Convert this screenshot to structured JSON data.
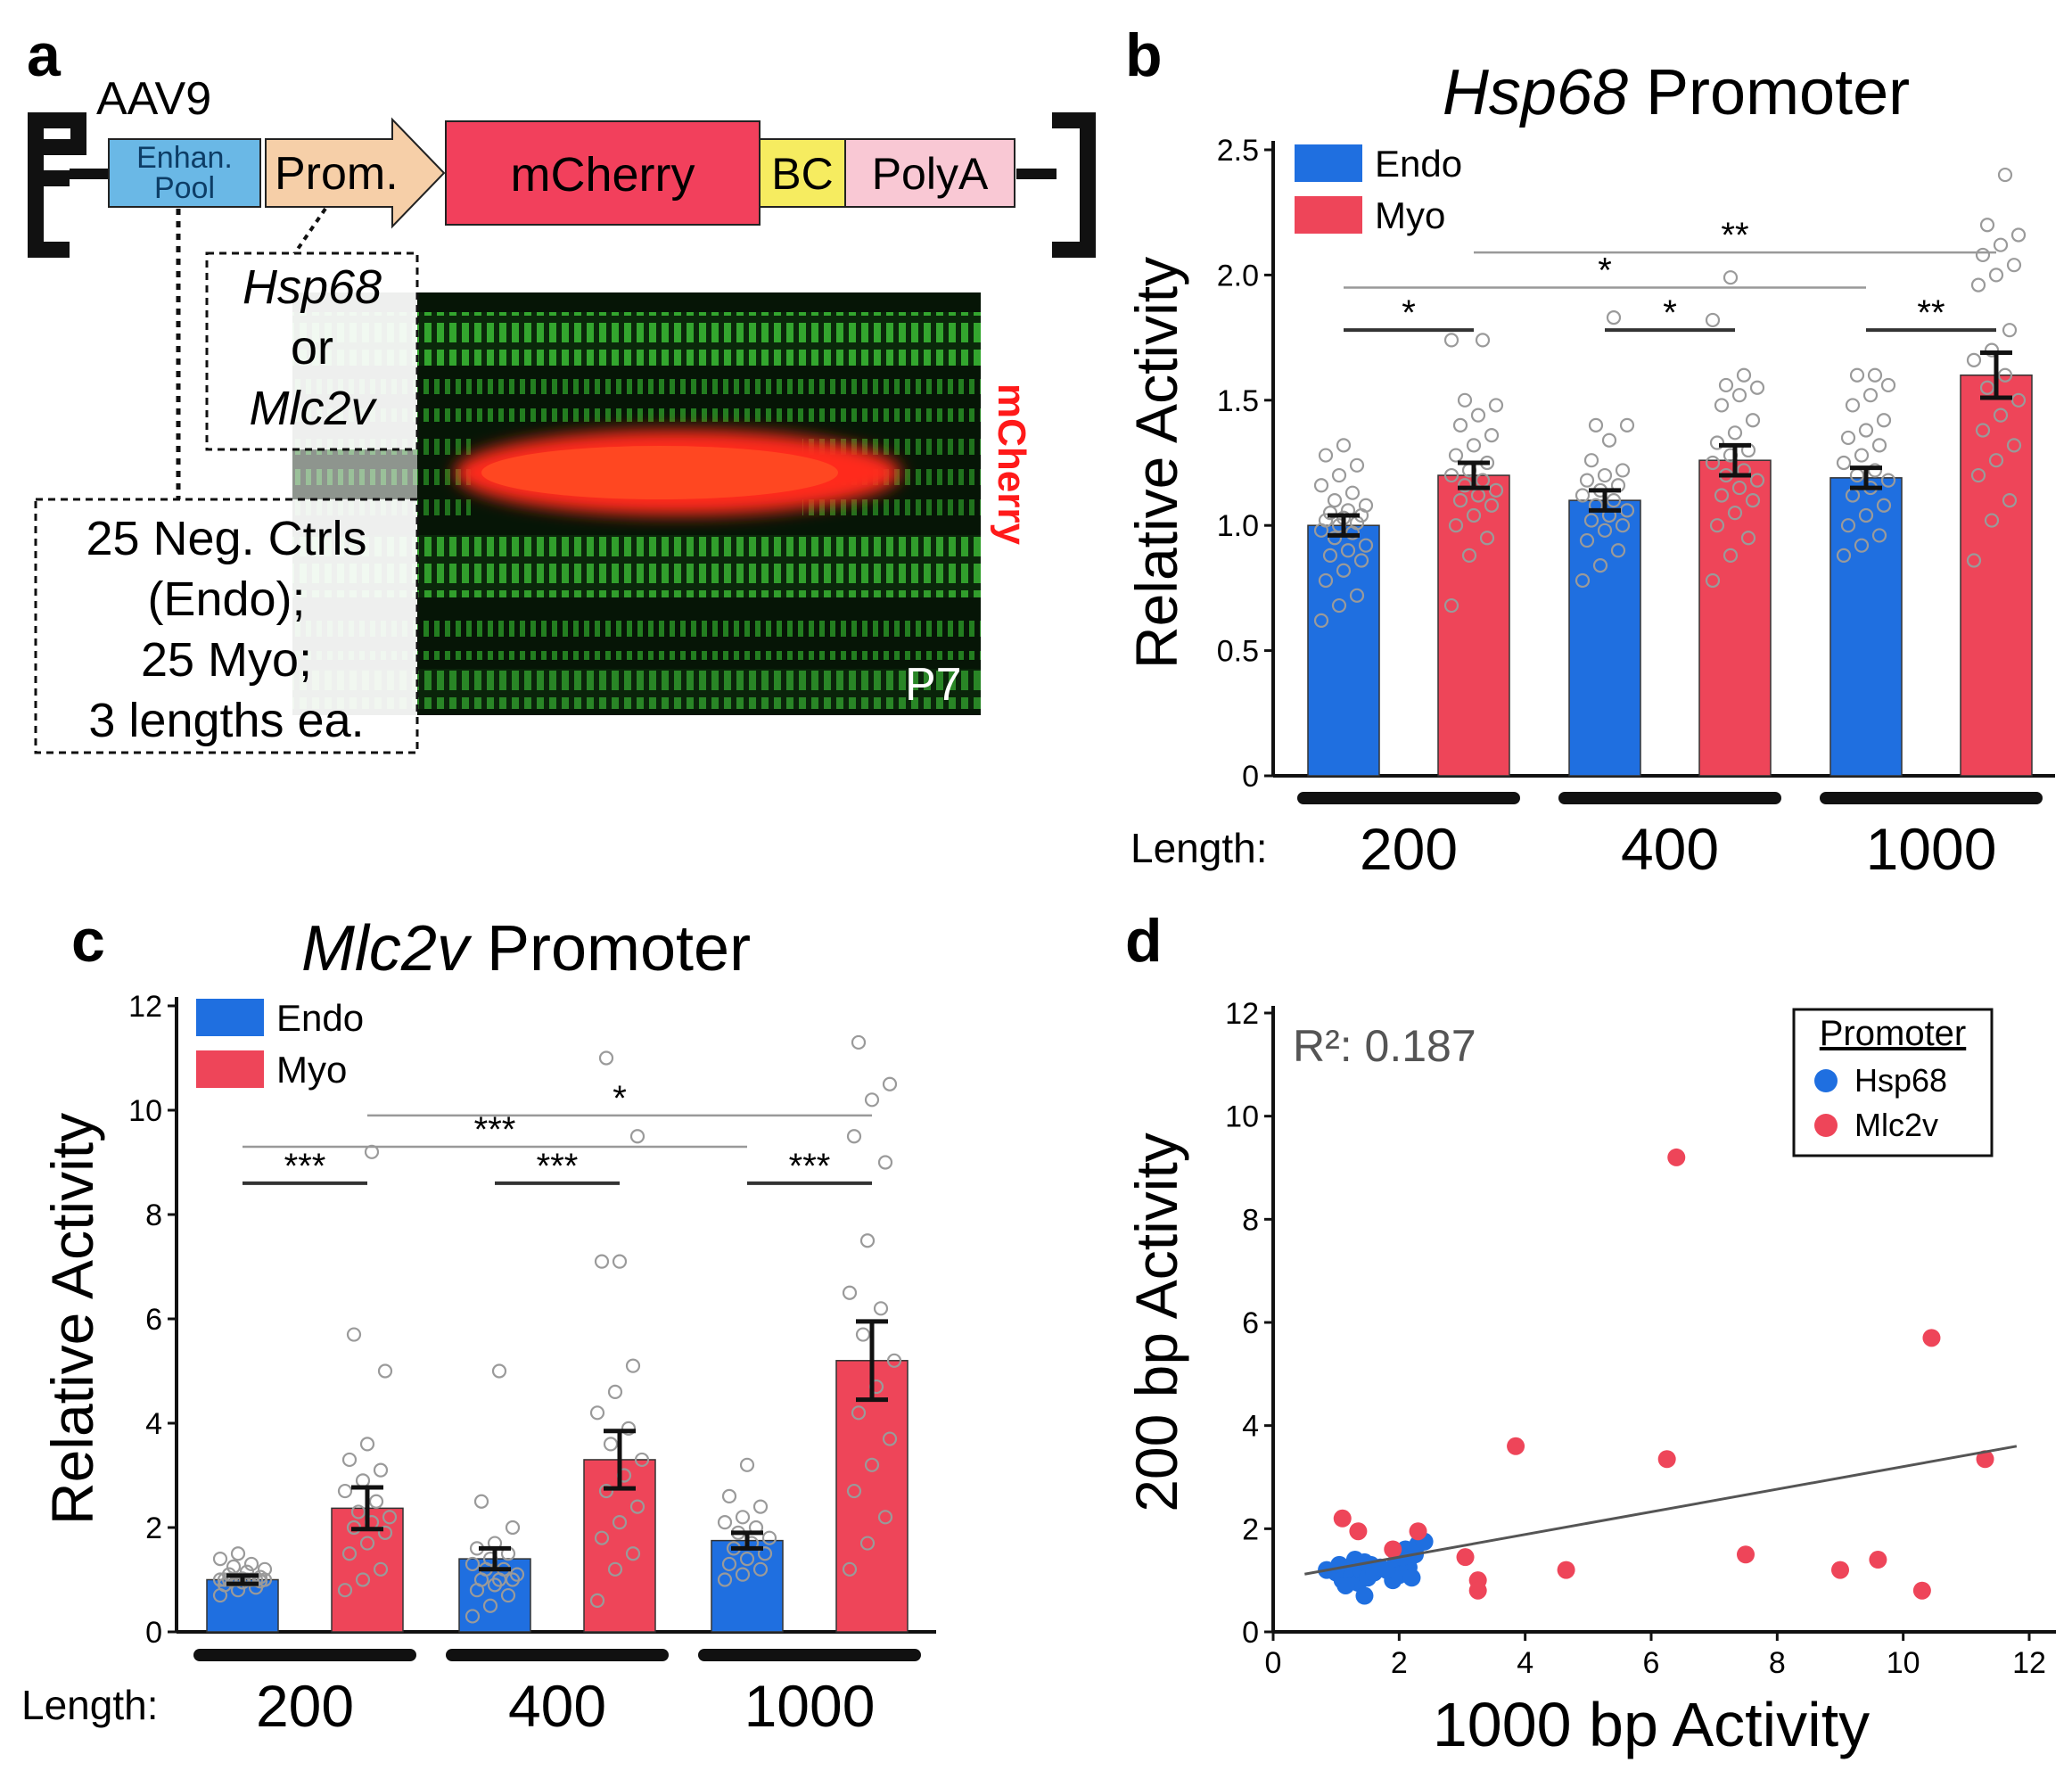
{
  "colors": {
    "endo": "#1f6fe0",
    "myo": "#ee4559",
    "enhancer": "#6ab8e6",
    "promoter": "#f6cfa8",
    "mcherry": "#f2405c",
    "barcode": "#f6ec60",
    "polya": "#f9c8d4",
    "micrograph_green": "#3fcf3a",
    "micrograph_red": "#ff2a1a",
    "point_open": "#9a9a9a",
    "sig_line": "#999999"
  },
  "panel_a": {
    "letter": "a",
    "vector_name": "AAV9",
    "enhancer_label_1": "Enhan.",
    "enhancer_label_2": "Pool",
    "promoter_label": "Prom.",
    "reporter_label": "mCherry",
    "barcode_label": "BC",
    "polya_label": "PolyA",
    "promoter_box_1": "Hsp68",
    "promoter_box_2": "or",
    "promoter_box_3": "Mlc2v",
    "library_line_1": "25 Neg. Ctrls",
    "library_line_2": "(Endo);",
    "library_line_3": "25 Myo;",
    "library_line_4": "3 lengths ea.",
    "micrograph_stage": "P7",
    "micrograph_channel": "mCherry"
  },
  "chart_data": [
    {
      "panel": "b",
      "type": "bar",
      "title_italic": "Hsp68",
      "title_rest": " Promoter",
      "ylabel": "Relative Activity",
      "xlabel": "Length:",
      "ylim": [
        0,
        2.5
      ],
      "yticks": [
        "0",
        "0.5",
        "1.0",
        "1.5",
        "2.0",
        "2.5"
      ],
      "ytick_values": [
        0,
        0.5,
        1.0,
        1.5,
        2.0,
        2.5
      ],
      "categories": [
        "200",
        "400",
        "1000"
      ],
      "series": [
        {
          "name": "Endo",
          "color_key": "endo",
          "values": [
            1.0,
            1.1,
            1.19
          ],
          "errors": [
            0.04,
            0.04,
            0.04
          ],
          "points": [
            [
              0.62,
              0.68,
              0.72,
              0.78,
              0.82,
              0.86,
              0.88,
              0.9,
              0.92,
              0.95,
              0.97,
              0.98,
              1.0,
              1.01,
              1.02,
              1.03,
              1.04,
              1.05,
              1.06,
              1.08,
              1.1,
              1.13,
              1.16,
              1.2,
              1.24,
              1.28,
              1.32
            ],
            [
              0.78,
              0.84,
              0.9,
              0.94,
              0.98,
              1.0,
              1.02,
              1.04,
              1.06,
              1.08,
              1.1,
              1.12,
              1.14,
              1.16,
              1.18,
              1.2,
              1.22,
              1.26,
              1.34,
              1.4,
              1.4,
              1.83
            ],
            [
              0.88,
              0.92,
              0.96,
              1.0,
              1.04,
              1.08,
              1.12,
              1.15,
              1.18,
              1.2,
              1.22,
              1.25,
              1.28,
              1.32,
              1.35,
              1.38,
              1.42,
              1.48,
              1.52,
              1.56,
              1.6,
              1.6
            ]
          ]
        },
        {
          "name": "Myo",
          "color_key": "myo",
          "values": [
            1.2,
            1.26,
            1.6
          ],
          "errors": [
            0.05,
            0.06,
            0.09
          ],
          "points": [
            [
              0.68,
              0.88,
              0.95,
              1.0,
              1.04,
              1.08,
              1.1,
              1.12,
              1.14,
              1.16,
              1.18,
              1.2,
              1.22,
              1.25,
              1.28,
              1.32,
              1.36,
              1.4,
              1.44,
              1.48,
              1.5,
              1.74,
              1.74
            ],
            [
              0.78,
              0.88,
              0.95,
              1.0,
              1.05,
              1.1,
              1.12,
              1.15,
              1.18,
              1.2,
              1.22,
              1.25,
              1.28,
              1.3,
              1.33,
              1.37,
              1.42,
              1.48,
              1.52,
              1.55,
              1.56,
              1.6,
              1.82,
              1.99
            ],
            [
              0.86,
              1.02,
              1.1,
              1.2,
              1.26,
              1.32,
              1.38,
              1.44,
              1.5,
              1.55,
              1.6,
              1.66,
              1.7,
              1.78,
              1.96,
              2.0,
              2.04,
              2.08,
              2.12,
              2.16,
              2.2,
              2.4
            ]
          ]
        }
      ],
      "significance": [
        {
          "label": "*",
          "from": [
            0,
            0
          ],
          "to": [
            0,
            1
          ],
          "y": 1.78,
          "style": "dark"
        },
        {
          "label": "*",
          "from": [
            1,
            0
          ],
          "to": [
            1,
            1
          ],
          "y": 1.78,
          "style": "dark"
        },
        {
          "label": "**",
          "from": [
            2,
            0
          ],
          "to": [
            2,
            1
          ],
          "y": 1.78,
          "style": "dark"
        },
        {
          "label": "*",
          "from": [
            0,
            0
          ],
          "to": [
            2,
            0
          ],
          "y": 1.95,
          "style": "light"
        },
        {
          "label": "**",
          "from": [
            0,
            1
          ],
          "to": [
            2,
            1
          ],
          "y": 2.09,
          "style": "light"
        }
      ],
      "legend": [
        "Endo",
        "Myo"
      ]
    },
    {
      "panel": "c",
      "type": "bar",
      "title_italic": "Mlc2v",
      "title_rest": " Promoter",
      "ylabel": "Relative Activity",
      "xlabel": "Length:",
      "ylim": [
        0,
        12
      ],
      "yticks": [
        "0",
        "2",
        "4",
        "6",
        "8",
        "10",
        "12"
      ],
      "ytick_values": [
        0,
        2,
        4,
        6,
        8,
        10,
        12
      ],
      "categories": [
        "200",
        "400",
        "1000"
      ],
      "series": [
        {
          "name": "Endo",
          "color_key": "endo",
          "values": [
            1.0,
            1.4,
            1.75
          ],
          "errors": [
            0.08,
            0.2,
            0.15
          ],
          "points": [
            [
              0.7,
              0.8,
              0.85,
              0.9,
              0.95,
              0.97,
              1.0,
              1.0,
              1.0,
              1.0,
              1.0,
              1.0,
              1.0,
              1.0,
              1.0,
              1.02,
              1.05,
              1.1,
              1.15,
              1.2,
              1.25,
              1.3,
              1.4,
              1.5
            ],
            [
              0.3,
              0.5,
              0.7,
              0.8,
              0.9,
              1.0,
              1.0,
              1.0,
              1.1,
              1.2,
              1.2,
              1.3,
              1.4,
              1.5,
              1.6,
              1.7,
              2.0,
              2.5,
              5.0
            ],
            [
              1.0,
              1.1,
              1.2,
              1.3,
              1.4,
              1.5,
              1.6,
              1.7,
              1.8,
              1.9,
              2.0,
              2.1,
              2.2,
              2.4,
              2.6,
              3.2
            ]
          ]
        },
        {
          "name": "Myo",
          "color_key": "myo",
          "values": [
            2.37,
            3.3,
            5.2
          ],
          "errors": [
            0.4,
            0.55,
            0.75
          ],
          "points": [
            [
              0.8,
              1.0,
              1.2,
              1.5,
              1.7,
              1.9,
              2.0,
              2.1,
              2.2,
              2.3,
              2.5,
              2.7,
              2.9,
              3.1,
              3.3,
              3.6,
              5.0,
              5.7,
              9.2
            ],
            [
              0.6,
              1.2,
              1.5,
              1.8,
              2.1,
              2.4,
              2.7,
              3.0,
              3.3,
              3.6,
              3.9,
              4.2,
              4.6,
              5.1,
              7.1,
              7.1,
              9.5,
              11.0
            ],
            [
              1.2,
              1.7,
              2.2,
              2.7,
              3.2,
              3.7,
              4.2,
              4.7,
              5.2,
              5.7,
              6.2,
              6.5,
              7.5,
              9.0,
              9.5,
              10.2,
              10.5,
              11.3
            ]
          ]
        }
      ],
      "significance": [
        {
          "label": "***",
          "from": [
            0,
            0
          ],
          "to": [
            0,
            1
          ],
          "y": 8.6,
          "style": "dark"
        },
        {
          "label": "***",
          "from": [
            1,
            0
          ],
          "to": [
            1,
            1
          ],
          "y": 8.6,
          "style": "dark"
        },
        {
          "label": "***",
          "from": [
            2,
            0
          ],
          "to": [
            2,
            1
          ],
          "y": 8.6,
          "style": "dark"
        },
        {
          "label": "***",
          "from": [
            0,
            0
          ],
          "to": [
            2,
            0
          ],
          "y": 9.3,
          "style": "light"
        },
        {
          "label": "*",
          "from": [
            0,
            1
          ],
          "to": [
            2,
            1
          ],
          "y": 9.9,
          "style": "light"
        }
      ],
      "legend": [
        "Endo",
        "Myo"
      ]
    },
    {
      "panel": "d",
      "type": "scatter",
      "xlabel": "1000 bp Activity",
      "ylabel": "200 bp Activity",
      "xlim": [
        0,
        12
      ],
      "ylim": [
        0,
        12
      ],
      "xticks": [
        "0",
        "2",
        "4",
        "6",
        "8",
        "10",
        "12"
      ],
      "yticks": [
        "0",
        "2",
        "4",
        "6",
        "8",
        "10",
        "12"
      ],
      "tick_values": [
        0,
        2,
        4,
        6,
        8,
        10,
        12
      ],
      "annotation": "R²: 0.187",
      "legend_title": "Promoter",
      "series": [
        {
          "name": "Hsp68",
          "color_key": "endo",
          "points": [
            [
              0.85,
              1.2
            ],
            [
              1.0,
              1.15
            ],
            [
              1.05,
              1.3
            ],
            [
              1.1,
              1.0
            ],
            [
              1.2,
              1.25
            ],
            [
              1.25,
              1.1
            ],
            [
              1.3,
              1.4
            ],
            [
              1.35,
              0.95
            ],
            [
              1.4,
              1.2
            ],
            [
              1.45,
              0.7
            ],
            [
              1.45,
              1.35
            ],
            [
              1.5,
              1.05
            ],
            [
              1.55,
              1.3
            ],
            [
              1.6,
              1.15
            ],
            [
              1.7,
              1.25
            ],
            [
              1.9,
              1.0
            ],
            [
              1.95,
              1.35
            ],
            [
              2.0,
              1.1
            ],
            [
              2.1,
              1.6
            ],
            [
              2.15,
              1.25
            ],
            [
              2.2,
              1.05
            ],
            [
              2.25,
              1.5
            ],
            [
              2.3,
              1.7
            ],
            [
              2.4,
              1.75
            ],
            [
              1.8,
              1.2
            ],
            [
              1.15,
              0.9
            ],
            [
              2.05,
              1.45
            ]
          ]
        },
        {
          "name": "Mlc2v",
          "color_key": "myo",
          "points": [
            [
              1.1,
              2.2
            ],
            [
              1.35,
              1.95
            ],
            [
              1.9,
              1.6
            ],
            [
              2.3,
              1.95
            ],
            [
              3.05,
              1.45
            ],
            [
              3.25,
              1.0
            ],
            [
              3.25,
              0.8
            ],
            [
              3.85,
              3.6
            ],
            [
              4.65,
              1.2
            ],
            [
              6.25,
              3.35
            ],
            [
              6.4,
              9.2
            ],
            [
              7.5,
              1.5
            ],
            [
              9.0,
              1.2
            ],
            [
              9.6,
              1.4
            ],
            [
              10.3,
              0.8
            ],
            [
              10.45,
              5.7
            ],
            [
              11.3,
              3.35
            ]
          ]
        }
      ],
      "fit_line": {
        "x0": 0.5,
        "y0": 1.12,
        "x1": 11.8,
        "y1": 3.6
      }
    }
  ]
}
